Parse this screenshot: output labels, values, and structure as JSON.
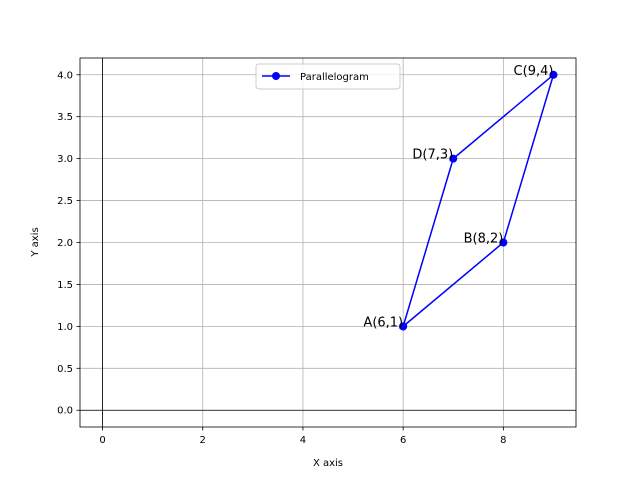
{
  "chart_data": {
    "type": "line",
    "title": "",
    "xlabel": "X axis",
    "ylabel": "Y axis",
    "xlim": [
      -0.45,
      9.45
    ],
    "ylim": [
      -0.2,
      4.2
    ],
    "xticks": [
      0,
      2,
      4,
      6,
      8
    ],
    "xtick_labels": [
      "0",
      "2",
      "4",
      "6",
      "8"
    ],
    "yticks": [
      0,
      0.5,
      1,
      1.5,
      2,
      2.5,
      3,
      3.5,
      4
    ],
    "ytick_labels": [
      "0.0",
      "0.5",
      "1.0",
      "1.5",
      "2.0",
      "2.5",
      "3.0",
      "3.5",
      "4.0"
    ],
    "grid": true,
    "zero_lines": true,
    "legend_position": "upper center",
    "series": [
      {
        "name": "Parallelogram",
        "color": "#0000ff",
        "marker": "circle",
        "points": [
          {
            "x": 6,
            "y": 1
          },
          {
            "x": 8,
            "y": 2
          },
          {
            "x": 9,
            "y": 4
          },
          {
            "x": 7,
            "y": 3
          },
          {
            "x": 6,
            "y": 1
          }
        ]
      }
    ],
    "annotations": [
      {
        "text": "A(6,1)",
        "x": 6,
        "y": 1
      },
      {
        "text": "B(8,2)",
        "x": 8,
        "y": 2
      },
      {
        "text": "C(9,4)",
        "x": 9,
        "y": 4
      },
      {
        "text": "D(7,3)",
        "x": 7,
        "y": 3
      }
    ]
  }
}
